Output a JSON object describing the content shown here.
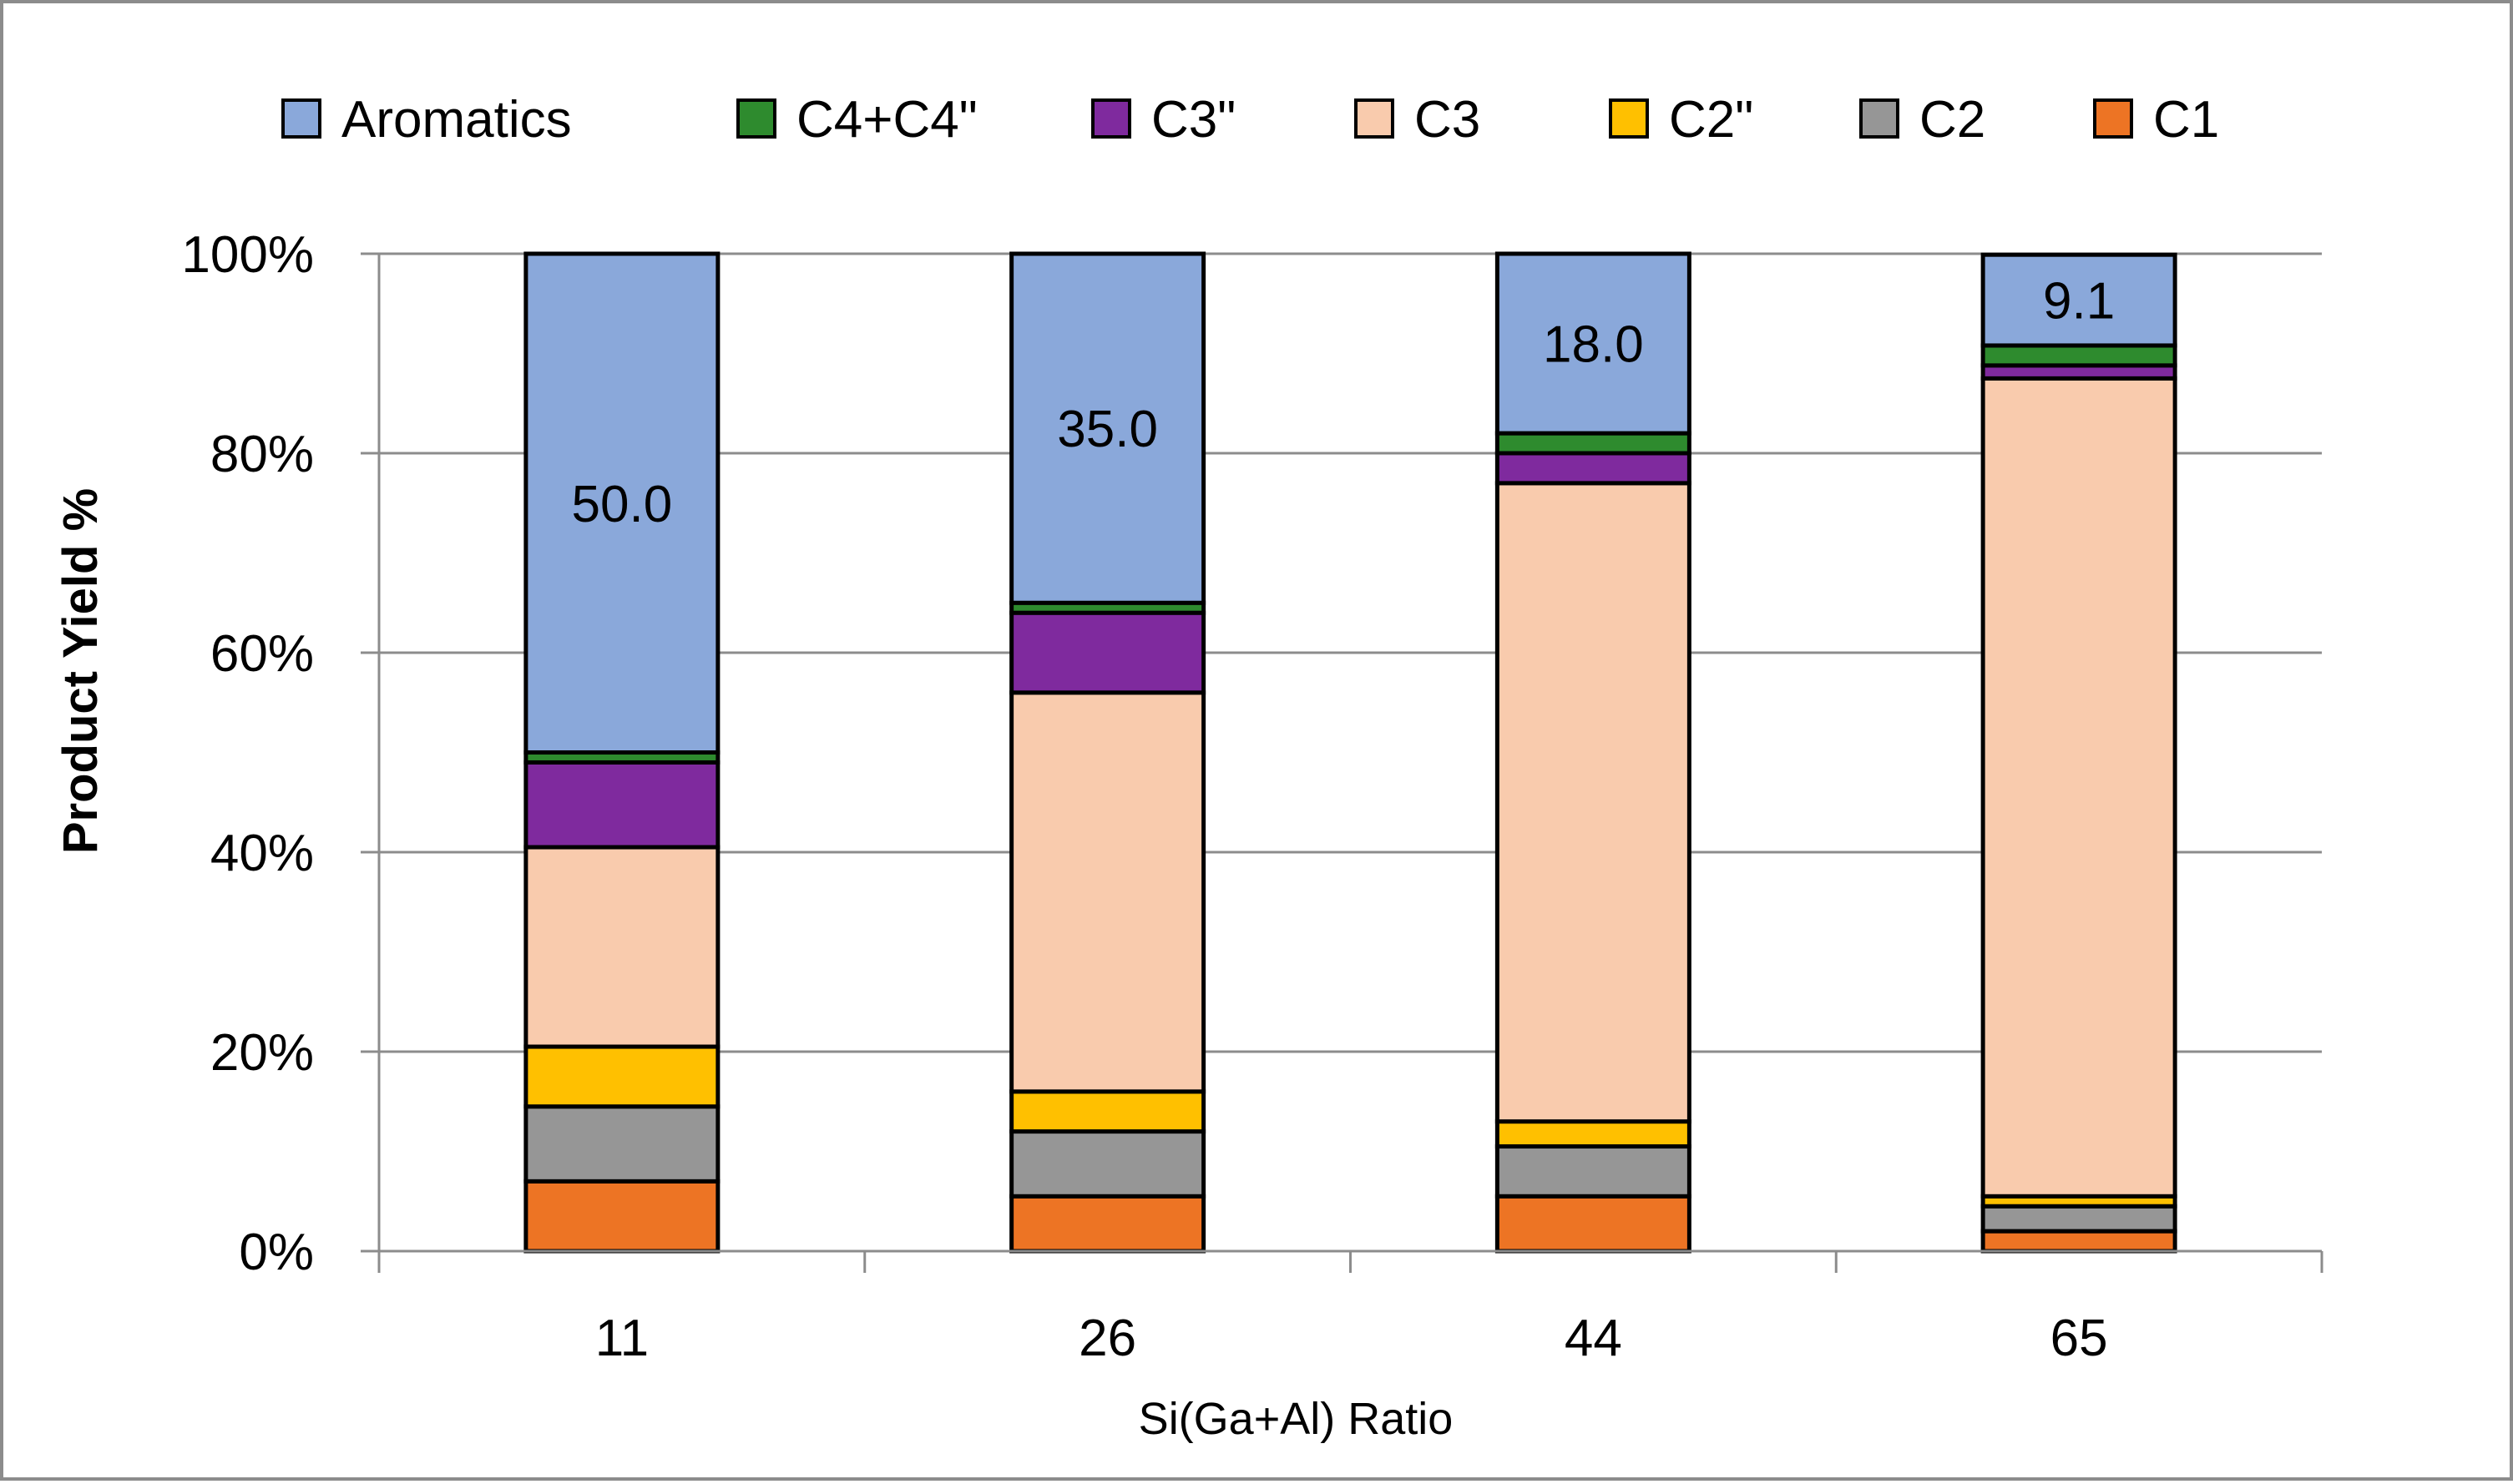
{
  "chart_data": {
    "type": "bar",
    "stacked": true,
    "normalized": true,
    "title": "",
    "xlabel": "Si(Ga+Al) Ratio",
    "ylabel": "Product Yield %",
    "categories": [
      "11",
      "26",
      "44",
      "65"
    ],
    "ylim": [
      0,
      100
    ],
    "yticks": [
      "0%",
      "20%",
      "40%",
      "60%",
      "80%",
      "100%"
    ],
    "grid": true,
    "legend_position": "top",
    "series": [
      {
        "name": "C1",
        "color": "#ED7424",
        "values": [
          7.0,
          5.5,
          5.5,
          2.0
        ]
      },
      {
        "name": "C2",
        "color": "#969696",
        "values": [
          7.5,
          6.5,
          5.0,
          2.5
        ]
      },
      {
        "name": "C2\"",
        "color": "#FFC000",
        "values": [
          6.0,
          4.0,
          2.5,
          1.0
        ]
      },
      {
        "name": "C3",
        "color": "#F9CBAD",
        "values": [
          20.0,
          40.0,
          64.0,
          82.0
        ]
      },
      {
        "name": "C3\"",
        "color": "#7F2A9E",
        "values": [
          8.5,
          8.0,
          3.0,
          1.3
        ]
      },
      {
        "name": "C4+C4\"",
        "color": "#2E8B2E",
        "values": [
          1.0,
          1.0,
          2.0,
          2.0
        ]
      },
      {
        "name": "Aromatics",
        "color": "#8AA8DA",
        "values": [
          50.0,
          35.0,
          18.0,
          9.1
        ]
      }
    ],
    "data_labels": [
      {
        "series": "Aromatics",
        "category": "11",
        "text": "50.0"
      },
      {
        "series": "Aromatics",
        "category": "26",
        "text": "35.0"
      },
      {
        "series": "Aromatics",
        "category": "44",
        "text": "18.0"
      },
      {
        "series": "Aromatics",
        "category": "65",
        "text": "9.1"
      }
    ],
    "legend_order": [
      "Aromatics",
      "C4+C4\"",
      "C3\"",
      "C3",
      "C2\"",
      "C2",
      "C1"
    ]
  }
}
